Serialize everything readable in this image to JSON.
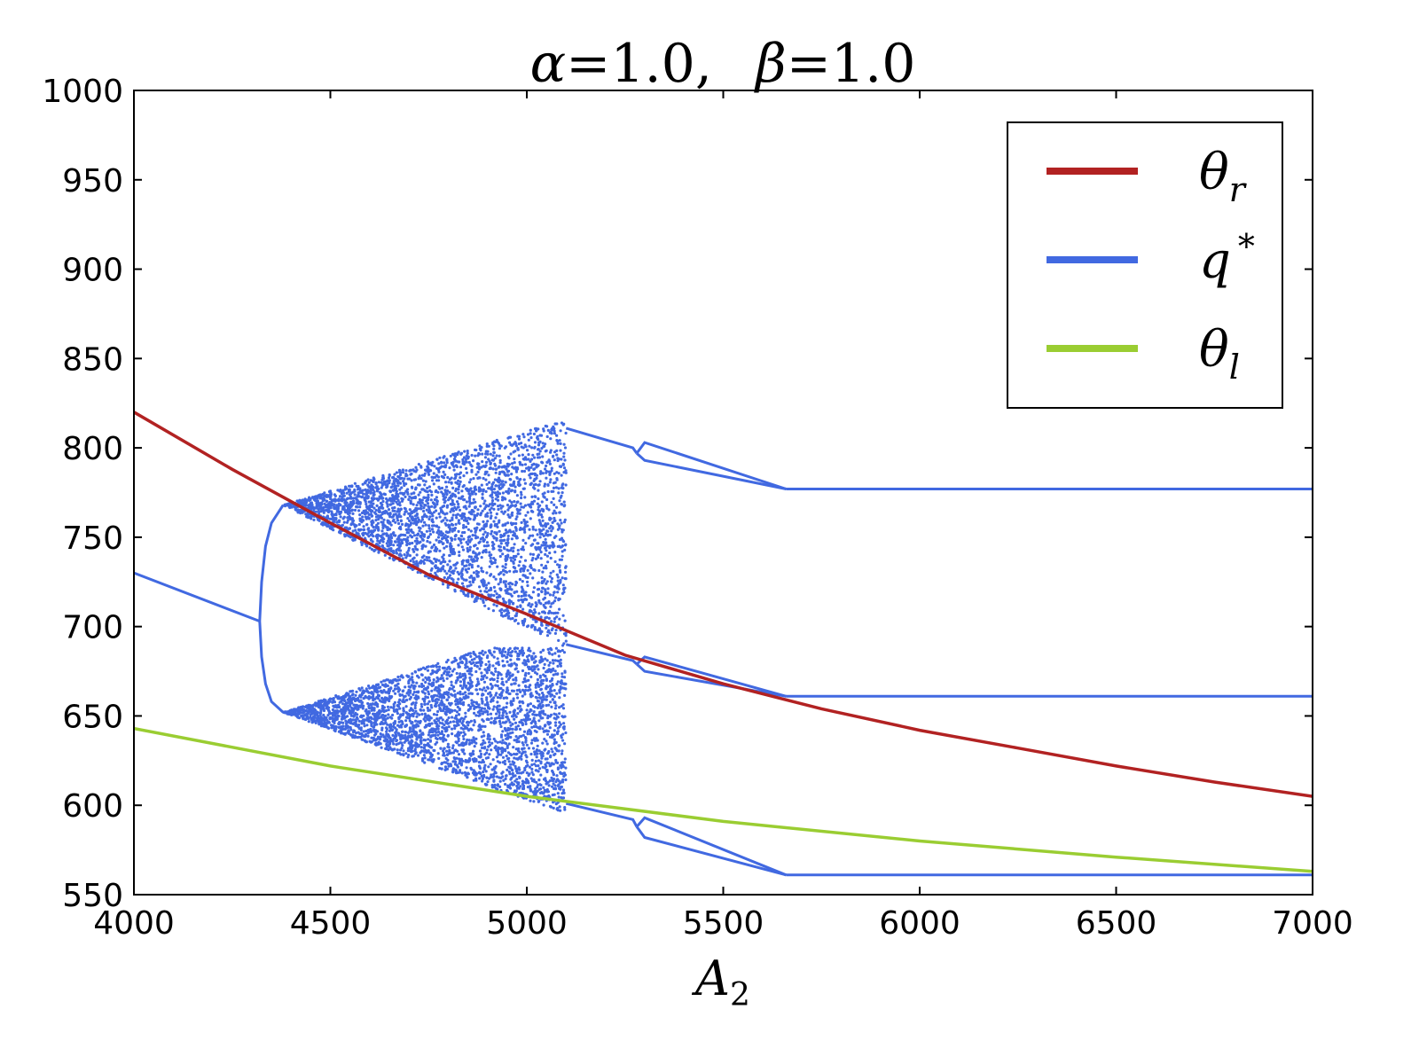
{
  "chart_data": {
    "type": "scatter",
    "title": {
      "alpha_symbol": "α",
      "beta_symbol": "β",
      "eq": "=",
      "alpha_value": "1.0",
      "beta_value": "1.0",
      "sep": ","
    },
    "xlabel": {
      "base": "A",
      "sub": "2"
    },
    "ylabel": "",
    "xlim": [
      4000,
      7000
    ],
    "ylim": [
      550,
      1000
    ],
    "xticks": [
      4000,
      4500,
      5000,
      5500,
      6000,
      6500,
      7000
    ],
    "yticks": [
      550,
      600,
      650,
      700,
      750,
      800,
      850,
      900,
      950,
      1000
    ],
    "grid": false,
    "legend_position": "top-right",
    "legend": [
      {
        "base": "θ",
        "sub": "r",
        "sup": "",
        "color": "#b22222"
      },
      {
        "base": "q",
        "sub": "",
        "sup": "*",
        "color": "#4169e1"
      },
      {
        "base": "θ",
        "sub": "l",
        "sup": "",
        "color": "#9acd32"
      }
    ],
    "series": [
      {
        "name": "θ_r",
        "type": "line",
        "color": "#b22222",
        "x": [
          4000,
          4250,
          4500,
          4750,
          5000,
          5250,
          5500,
          5750,
          6000,
          6250,
          6500,
          6750,
          7000
        ],
        "y": [
          820,
          788,
          758,
          729,
          707,
          684,
          668,
          654,
          642,
          632,
          622,
          613,
          605
        ]
      },
      {
        "name": "θ_l",
        "type": "line",
        "color": "#9acd32",
        "x": [
          4000,
          4500,
          5000,
          5500,
          6000,
          6500,
          7000
        ],
        "y": [
          643,
          622,
          605,
          591,
          580,
          571,
          563
        ]
      },
      {
        "name": "q*",
        "type": "bifurcation",
        "color": "#4169e1",
        "branches": [
          {
            "x": [
              4000,
              4320
            ],
            "y": [
              730,
              703
            ]
          },
          {
            "x": [
              4320,
              4325,
              4335,
              4350,
              4380
            ],
            "y": [
              703,
              725,
              745,
              758,
              768
            ]
          },
          {
            "x": [
              4320,
              4325,
              4335,
              4350,
              4380
            ],
            "y": [
              703,
              683,
              668,
              658,
              652
            ]
          },
          {
            "x": [
              5100,
              5270,
              5280
            ],
            "y": [
              811,
              800,
              797
            ]
          },
          {
            "x": [
              5280,
              5300,
              5660
            ],
            "y": [
              797,
              803,
              777
            ]
          },
          {
            "x": [
              5280,
              5300,
              5660
            ],
            "y": [
              797,
              793,
              777
            ]
          },
          {
            "x": [
              5660,
              7000
            ],
            "y": [
              777,
              777
            ]
          },
          {
            "x": [
              5100,
              5270,
              5280
            ],
            "y": [
              690,
              681,
              679
            ]
          },
          {
            "x": [
              5280,
              5300,
              5660
            ],
            "y": [
              679,
              683,
              661
            ]
          },
          {
            "x": [
              5280,
              5300,
              5660
            ],
            "y": [
              679,
              675,
              661
            ]
          },
          {
            "x": [
              5660,
              7000
            ],
            "y": [
              661,
              661
            ]
          },
          {
            "x": [
              5100,
              5270,
              5280
            ],
            "y": [
              601,
              592,
              588
            ]
          },
          {
            "x": [
              5280,
              5300,
              5660
            ],
            "y": [
              588,
              593,
              561
            ]
          },
          {
            "x": [
              5280,
              5300,
              5660
            ],
            "y": [
              588,
              582,
              561
            ]
          },
          {
            "x": [
              5660,
              7000
            ],
            "y": [
              561,
              561
            ]
          }
        ],
        "chaotic_band": {
          "x_start": 4380,
          "x_end": 5100,
          "upper_top_at_end": 816,
          "lower_bottom_at_end": 595
        }
      }
    ]
  }
}
